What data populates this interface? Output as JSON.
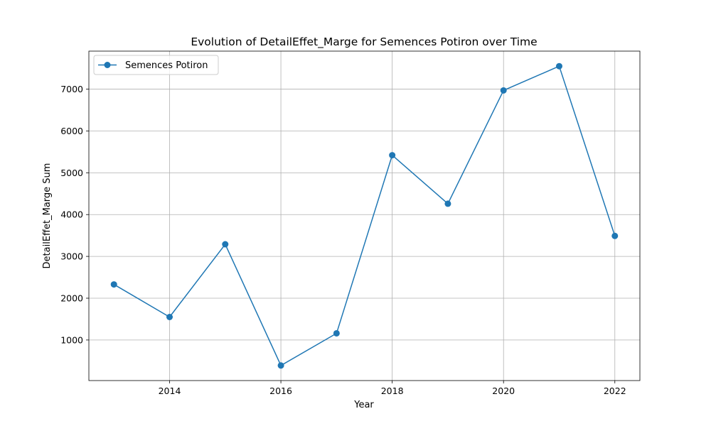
{
  "chart_data": {
    "type": "line",
    "title": "Evolution of DetailEffet_Marge for Semences Potiron over Time",
    "xlabel": "Year",
    "ylabel": "DetailEffet_Marge Sum",
    "x": [
      2013,
      2014,
      2015,
      2016,
      2017,
      2018,
      2019,
      2020,
      2021,
      2022
    ],
    "series": [
      {
        "name": "Semences Potiron",
        "values": [
          2330,
          1550,
          3290,
          390,
          1160,
          5420,
          4260,
          6970,
          7550,
          3490
        ],
        "color": "#1f77b4",
        "marker": "circle"
      }
    ],
    "xlim": [
      2012.55,
      2022.45
    ],
    "ylim": [
      30,
      7910
    ],
    "xticks": [
      "2014",
      "2016",
      "2018",
      "2020",
      "2022"
    ],
    "yticks": [
      "1000",
      "2000",
      "3000",
      "4000",
      "5000",
      "6000",
      "7000"
    ],
    "grid": true,
    "legend_position": "top-left"
  }
}
